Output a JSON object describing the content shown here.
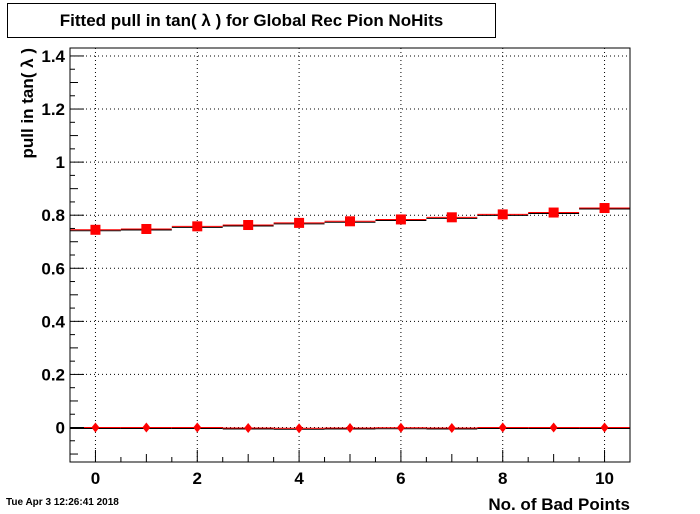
{
  "title": "Fitted pull in tan( λ ) for Global Rec Pion NoHits",
  "timestamp": "Tue Apr  3 12:26:41 2018",
  "chart_data": {
    "type": "scatter",
    "title": "Fitted pull in tan( λ ) for Global Rec Pion NoHits",
    "xlabel": "No. of Bad Points",
    "ylabel": "pull in tan( λ )",
    "xlim": [
      -0.5,
      10.5
    ],
    "ylim": [
      -0.13,
      1.43
    ],
    "x_ticks": [
      0,
      2,
      4,
      6,
      8,
      10
    ],
    "y_ticks": [
      0,
      0.2,
      0.4,
      0.6,
      0.8,
      1,
      1.2,
      1.4
    ],
    "y_tick_labels": [
      "0",
      "0.2",
      "0.4",
      "0.6",
      "0.8",
      "1",
      "1.2",
      "1.4"
    ],
    "grid": true,
    "series": [
      {
        "marker": "square",
        "color": "#ff0000",
        "x": [
          0,
          1,
          2,
          3,
          4,
          5,
          6,
          7,
          8,
          9,
          10
        ],
        "y": [
          0.745,
          0.748,
          0.758,
          0.763,
          0.771,
          0.777,
          0.784,
          0.792,
          0.803,
          0.81,
          0.827
        ]
      },
      {
        "marker": "diamond",
        "color": "#ff0000",
        "x": [
          0,
          1,
          2,
          3,
          4,
          5,
          6,
          7,
          8,
          9,
          10
        ],
        "y": [
          0.0,
          0.0,
          0.0,
          -0.002,
          -0.003,
          -0.002,
          -0.001,
          -0.002,
          0.0,
          0.0,
          0.0
        ]
      }
    ]
  }
}
